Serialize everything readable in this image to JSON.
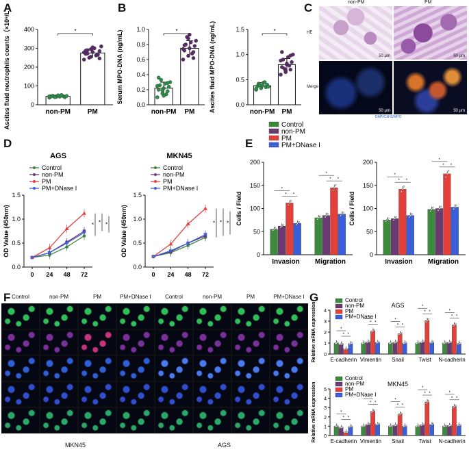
{
  "panel_labels": {
    "a": "A",
    "b": "B",
    "c": "C",
    "d": "D",
    "e": "E",
    "f": "F",
    "g": "G"
  },
  "colors": {
    "control": "#3d8a3d",
    "nonpm": "#6b3a73",
    "pm": "#e3403b",
    "dnase": "#3a5fd8",
    "scatter_a": "#2e8b4a",
    "scatter_b": "#2a9a4a",
    "scatter_pm": "#5b2a6a"
  },
  "legend": {
    "control": "Control",
    "nonpm": "non-PM",
    "pm": "PM",
    "dnase": "PM+DNase I"
  },
  "star": "*",
  "chart_data": [
    {
      "id": "A",
      "type": "bar",
      "ylabel": "Ascites fluid neutrophils counts（×10⁹/L）",
      "categories": [
        "non-PM",
        "PM"
      ],
      "values": [
        45,
        275
      ],
      "errors": [
        6,
        25
      ],
      "ylim": [
        0,
        400
      ],
      "yticks": [
        "0",
        "100",
        "200",
        "300",
        "400"
      ],
      "points": [
        [
          38,
          42,
          46,
          44,
          50,
          40,
          48,
          43,
          47,
          41,
          52,
          45
        ],
        [
          240,
          255,
          265,
          270,
          280,
          285,
          290,
          300,
          310,
          250,
          262,
          278,
          295,
          268,
          288,
          305,
          246,
          272
        ]
      ]
    },
    {
      "id": "B1",
      "type": "bar",
      "ylabel": "Serum MPO-DNA (ng/mL)",
      "categories": [
        "non-PM",
        "PM"
      ],
      "values": [
        0.22,
        0.75
      ],
      "errors": [
        0.08,
        0.1
      ],
      "ylim": [
        0,
        1.0
      ],
      "yticks": [
        "0.0",
        "0.2",
        "0.4",
        "0.6",
        "0.8",
        "1.0"
      ],
      "points": [
        [
          0.1,
          0.15,
          0.18,
          0.2,
          0.22,
          0.24,
          0.26,
          0.28,
          0.3,
          0.33,
          0.14,
          0.25,
          0.19,
          0.29,
          0.36,
          0.12
        ],
        [
          0.6,
          0.65,
          0.7,
          0.72,
          0.75,
          0.78,
          0.8,
          0.83,
          0.85,
          0.9,
          0.68,
          0.74,
          0.88,
          0.62,
          0.79,
          0.93
        ]
      ]
    },
    {
      "id": "B2",
      "type": "bar",
      "ylabel": "Ascites fluid MPO-DNA (ng/mL)",
      "categories": [
        "non-PM",
        "PM"
      ],
      "values": [
        0.38,
        0.8
      ],
      "errors": [
        0.06,
        0.12
      ],
      "ylim": [
        0,
        1.5
      ],
      "yticks": [
        "0.0",
        "0.5",
        "1.0",
        "1.5"
      ],
      "points": [
        [
          0.3,
          0.33,
          0.35,
          0.37,
          0.38,
          0.4,
          0.42,
          0.44,
          0.36,
          0.39,
          0.45,
          0.32
        ],
        [
          0.6,
          0.65,
          0.7,
          0.75,
          0.8,
          0.85,
          0.9,
          0.95,
          1.0,
          0.72,
          0.78,
          0.88,
          0.68,
          0.98,
          1.05,
          0.82
        ]
      ]
    },
    {
      "id": "D1",
      "type": "line",
      "title": "AGS",
      "ylabel": "OD Value (450nm)",
      "x": [
        "0",
        "24",
        "48",
        "72"
      ],
      "ylim": [
        0,
        1.5
      ],
      "yticks": [
        "0.0",
        "0.5",
        "1.0",
        "1.5"
      ],
      "series": [
        {
          "name": "Control",
          "key": "control",
          "values": [
            0.2,
            0.25,
            0.42,
            0.65
          ]
        },
        {
          "name": "non-PM",
          "key": "nonpm",
          "values": [
            0.2,
            0.3,
            0.52,
            0.75
          ]
        },
        {
          "name": "PM",
          "key": "pm",
          "values": [
            0.2,
            0.4,
            0.8,
            1.12
          ]
        },
        {
          "name": "PM+DNase I",
          "key": "dnase",
          "values": [
            0.2,
            0.3,
            0.5,
            0.72
          ]
        }
      ]
    },
    {
      "id": "D2",
      "type": "line",
      "title": "MKN45",
      "ylabel": "OD Value (450nm)",
      "x": [
        "0",
        "24",
        "48",
        "72"
      ],
      "ylim": [
        0,
        1.5
      ],
      "yticks": [
        "0.0",
        "0.5",
        "1.0",
        "1.5"
      ],
      "series": [
        {
          "name": "Control",
          "key": "control",
          "values": [
            0.22,
            0.3,
            0.45,
            0.62
          ]
        },
        {
          "name": "non-PM",
          "key": "nonpm",
          "values": [
            0.22,
            0.32,
            0.5,
            0.65
          ]
        },
        {
          "name": "PM",
          "key": "pm",
          "values": [
            0.22,
            0.48,
            0.9,
            1.22
          ]
        },
        {
          "name": "PM+DNase I",
          "key": "dnase",
          "values": [
            0.22,
            0.34,
            0.5,
            0.68
          ]
        }
      ]
    },
    {
      "id": "E1",
      "type": "bar",
      "ylabel": "Cells / Field",
      "categories": [
        "Invasion",
        "Migration"
      ],
      "ylim": [
        0,
        200
      ],
      "yticks": [
        "0",
        "50",
        "100",
        "150",
        "200"
      ],
      "series": [
        {
          "name": "Control",
          "key": "control",
          "values": [
            55,
            80
          ]
        },
        {
          "name": "non-PM",
          "key": "nonpm",
          "values": [
            62,
            85
          ]
        },
        {
          "name": "PM",
          "key": "pm",
          "values": [
            112,
            145
          ]
        },
        {
          "name": "PM+DNase I",
          "key": "dnase",
          "values": [
            68,
            88
          ]
        }
      ]
    },
    {
      "id": "E2",
      "type": "bar",
      "ylabel": "Cells / Field",
      "categories": [
        "Invasion",
        "Migration"
      ],
      "ylim": [
        0,
        200
      ],
      "yticks": [
        "0",
        "50",
        "100",
        "150",
        "200"
      ],
      "series": [
        {
          "name": "Control",
          "key": "control",
          "values": [
            75,
            98
          ]
        },
        {
          "name": "non-PM",
          "key": "nonpm",
          "values": [
            78,
            100
          ]
        },
        {
          "name": "PM",
          "key": "pm",
          "values": [
            142,
            175
          ]
        },
        {
          "name": "PM+DNase I",
          "key": "dnase",
          "values": [
            85,
            103
          ]
        }
      ]
    },
    {
      "id": "G1",
      "type": "bar",
      "title": "AGS",
      "ylabel": "Relative mRNA expression",
      "categories": [
        "E-cadherin",
        "Vimentin",
        "Snail",
        "Twist",
        "N-cadherin"
      ],
      "ylim": [
        0,
        4
      ],
      "yticks": [
        "0",
        "1",
        "2",
        "3",
        "4"
      ],
      "series": [
        {
          "name": "Control",
          "key": "control",
          "values": [
            1.0,
            1.0,
            1.0,
            1.0,
            1.0
          ]
        },
        {
          "name": "non-PM",
          "key": "nonpm",
          "values": [
            0.9,
            1.1,
            1.05,
            1.1,
            1.05
          ]
        },
        {
          "name": "PM",
          "key": "pm",
          "values": [
            0.45,
            2.1,
            1.85,
            3.05,
            2.65
          ]
        },
        {
          "name": "PM+DNase I",
          "key": "dnase",
          "values": [
            0.95,
            1.05,
            1.0,
            1.05,
            0.95
          ]
        }
      ]
    },
    {
      "id": "G2",
      "type": "bar",
      "title": "MKN45",
      "ylabel": "Relative mRNA expression",
      "categories": [
        "E-cadherin",
        "Vimentin",
        "Snail",
        "Twist",
        "N-cadherin"
      ],
      "ylim": [
        0,
        5
      ],
      "yticks": [
        "0",
        "1",
        "2",
        "3",
        "4",
        "5"
      ],
      "series": [
        {
          "name": "Control",
          "key": "control",
          "values": [
            1.0,
            1.0,
            1.0,
            1.0,
            1.0
          ]
        },
        {
          "name": "non-PM",
          "key": "nonpm",
          "values": [
            0.85,
            1.2,
            1.1,
            1.15,
            1.05
          ]
        },
        {
          "name": "PM",
          "key": "pm",
          "values": [
            0.35,
            2.6,
            2.3,
            3.6,
            3.1
          ]
        },
        {
          "name": "PM+DNase I",
          "key": "dnase",
          "values": [
            0.95,
            1.2,
            1.0,
            1.2,
            1.1
          ]
        }
      ]
    }
  ],
  "panel_c": {
    "col_labels": [
      "non-PM",
      "PM"
    ],
    "row_labels": [
      "HE",
      "Merge"
    ],
    "scalebar": "50 μm",
    "stain_legend": "DAPI/CitH3/MPO"
  },
  "panel_f": {
    "col_labels": [
      "Control",
      "non-PM",
      "PM",
      "PM+DNase I",
      "Control",
      "non-PM",
      "PM",
      "PM+DNase I"
    ],
    "bottom_labels": [
      "MKN45",
      "AGS"
    ],
    "row_tints": [
      "#2fbf5a",
      "#7a2f9a",
      "#2f5fd6",
      "#2f4fd0",
      "#2aa86a"
    ]
  }
}
